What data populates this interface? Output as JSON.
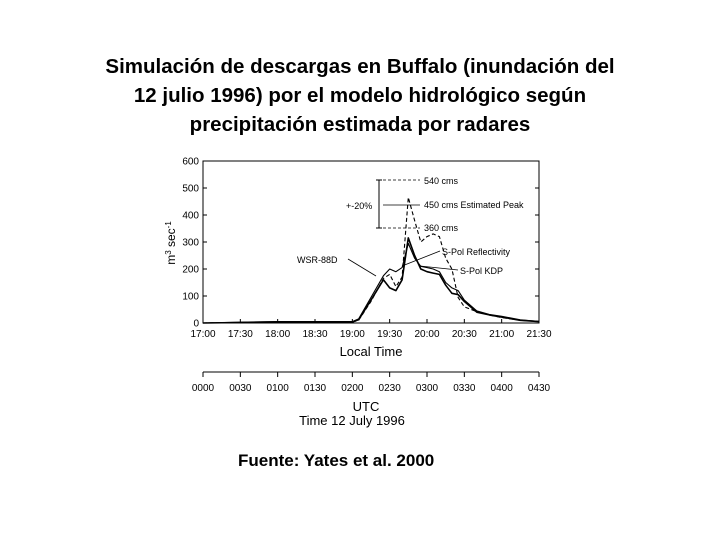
{
  "slide": {
    "title_lines": [
      "Simulación de descargas en Buffalo (inundación del",
      "12 julio 1996) por el modelo hidrológico según",
      "precipitación estimada por radares"
    ],
    "source": "Fuente: Yates et al. 2000"
  },
  "chart_data": {
    "type": "line",
    "title": "",
    "ylabel_base": "m",
    "ylabel_sup1": "3",
    "ylabel_mid": " sec",
    "ylabel_sup2": "-1",
    "ylim": [
      0,
      600
    ],
    "yticks": [
      "0",
      "100",
      "200",
      "300",
      "400",
      "500",
      "600"
    ],
    "xlabel": "Local Time",
    "x_ticks_local": [
      "17:00",
      "17:30",
      "18:00",
      "18:30",
      "19:00",
      "19:30",
      "20:00",
      "20:30",
      "21:00",
      "21:30"
    ],
    "utc_ticks": [
      "0000",
      "0030",
      "0100",
      "0130",
      "0200",
      "0230",
      "0300",
      "0330",
      "0400",
      "0430"
    ],
    "utc_label": "UTC",
    "utc_sublabel": "Time 12 July 1996",
    "grid": false,
    "annotations": {
      "peak_high": "540 cms",
      "peak_estimated": "450 cms Estimated Peak",
      "peak_low": "360 cms",
      "range": "+-20%",
      "wsr": "WSR-88D",
      "spol_refl": "S-Pol Reflectivity",
      "spol_kdp": "S-Pol KDP"
    },
    "series": [
      {
        "name": "WSR-88D",
        "style": "dashed",
        "x": [
          "17:00",
          "17:30",
          "18:00",
          "18:30",
          "19:00",
          "19:05",
          "19:15",
          "19:25",
          "19:30",
          "19:35",
          "19:40",
          "19:45",
          "19:50",
          "19:55",
          "20:00",
          "20:05",
          "20:10",
          "20:15",
          "20:20",
          "20:25",
          "20:30",
          "20:40",
          "20:50",
          "21:00",
          "21:15",
          "21:30"
        ],
        "y": [
          0,
          2,
          3,
          3,
          3,
          10,
          80,
          165,
          180,
          135,
          170,
          465,
          380,
          300,
          320,
          330,
          320,
          240,
          200,
          95,
          60,
          42,
          30,
          20,
          10,
          5
        ]
      },
      {
        "name": "S-Pol Reflectivity",
        "style": "solid",
        "x": [
          "17:00",
          "17:30",
          "18:00",
          "18:30",
          "19:00",
          "19:05",
          "19:15",
          "19:25",
          "19:30",
          "19:35",
          "19:40",
          "19:45",
          "19:50",
          "19:55",
          "20:00",
          "20:05",
          "20:10",
          "20:15",
          "20:20",
          "20:25",
          "20:30",
          "20:40",
          "20:50",
          "21:00",
          "21:15",
          "21:30"
        ],
        "y": [
          0,
          2,
          4,
          4,
          4,
          12,
          85,
          160,
          130,
          120,
          160,
          315,
          250,
          200,
          190,
          185,
          180,
          140,
          110,
          105,
          80,
          40,
          30,
          22,
          10,
          5
        ]
      },
      {
        "name": "S-Pol KDP",
        "style": "solid",
        "x": [
          "17:00",
          "17:30",
          "18:00",
          "18:30",
          "19:00",
          "19:05",
          "19:15",
          "19:25",
          "19:30",
          "19:35",
          "19:40",
          "19:45",
          "19:50",
          "19:55",
          "20:00",
          "20:05",
          "20:10",
          "20:15",
          "20:20",
          "20:25",
          "20:30",
          "20:40",
          "20:50",
          "21:00",
          "21:15",
          "21:30"
        ],
        "y": [
          0,
          3,
          5,
          5,
          5,
          15,
          95,
          175,
          200,
          190,
          205,
          295,
          240,
          210,
          205,
          200,
          190,
          150,
          130,
          120,
          85,
          45,
          32,
          25,
          12,
          6
        ]
      }
    ]
  }
}
